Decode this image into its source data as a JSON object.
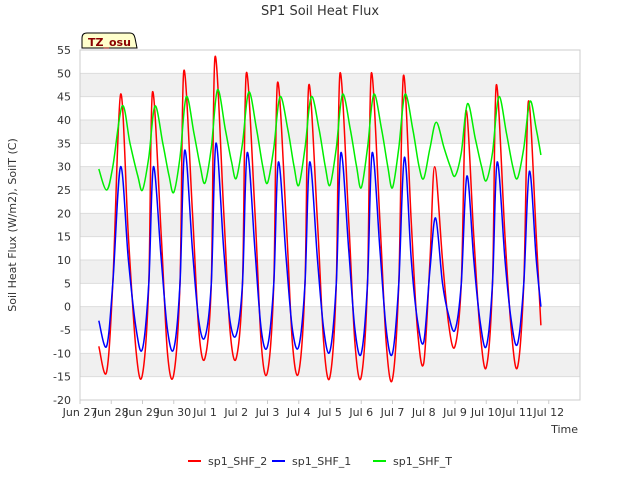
{
  "chart_data": {
    "type": "line",
    "title": "SP1 Soil Heat Flux",
    "xlabel": "Time",
    "ylabel": "Soil Heat Flux (W/m2), SoilT (C)",
    "badge": "TZ_osu",
    "ylim": [
      -20,
      55
    ],
    "yticks": [
      -20,
      -15,
      -10,
      -5,
      0,
      5,
      10,
      15,
      20,
      25,
      30,
      35,
      40,
      45,
      50,
      55
    ],
    "xlim": [
      0,
      16
    ],
    "xtick_labels": [
      "Jun 27",
      "Jun 28",
      "Jun 29",
      "Jun 30",
      "Jul 1",
      "Jul 2",
      "Jul 3",
      "Jul 4",
      "Jul 5",
      "Jul 6",
      "Jul 7",
      "Jul 8",
      "Jul 9",
      "Jul 10",
      "Jul 11",
      "Jul 12"
    ],
    "legend_position": "bottom",
    "series": [
      {
        "name": "sp1_SHF_2",
        "color": "#ff0000",
        "points": [
          [
            0.6,
            -8.5
          ],
          [
            0.85,
            -14
          ],
          [
            1.05,
            5
          ],
          [
            1.3,
            45.5
          ],
          [
            1.55,
            15
          ],
          [
            1.8,
            -10
          ],
          [
            2.0,
            -14.5
          ],
          [
            2.2,
            5
          ],
          [
            2.32,
            46
          ],
          [
            2.6,
            15
          ],
          [
            2.8,
            -10
          ],
          [
            3.0,
            -14.5
          ],
          [
            3.2,
            5
          ],
          [
            3.32,
            50.5
          ],
          [
            3.6,
            20
          ],
          [
            3.8,
            -5
          ],
          [
            4.0,
            -11
          ],
          [
            4.2,
            5
          ],
          [
            4.32,
            53.5
          ],
          [
            4.6,
            20
          ],
          [
            4.8,
            -5
          ],
          [
            5.0,
            -11
          ],
          [
            5.2,
            5
          ],
          [
            5.32,
            50
          ],
          [
            5.6,
            20
          ],
          [
            5.8,
            -8
          ],
          [
            6.0,
            -14
          ],
          [
            6.2,
            5
          ],
          [
            6.32,
            48
          ],
          [
            6.6,
            18
          ],
          [
            6.8,
            -8
          ],
          [
            7.0,
            -14
          ],
          [
            7.2,
            5
          ],
          [
            7.32,
            47.5
          ],
          [
            7.6,
            18
          ],
          [
            7.8,
            -8
          ],
          [
            8.0,
            -15
          ],
          [
            8.2,
            5
          ],
          [
            8.32,
            50
          ],
          [
            8.6,
            18
          ],
          [
            8.8,
            -8
          ],
          [
            9.0,
            -15
          ],
          [
            9.2,
            5
          ],
          [
            9.32,
            50
          ],
          [
            9.6,
            18
          ],
          [
            9.8,
            -8
          ],
          [
            10.0,
            -15.5
          ],
          [
            10.2,
            5
          ],
          [
            10.35,
            49.5
          ],
          [
            10.6,
            18
          ],
          [
            10.8,
            -5
          ],
          [
            11.0,
            -12
          ],
          [
            11.2,
            10
          ],
          [
            11.35,
            30
          ],
          [
            11.6,
            10
          ],
          [
            11.8,
            -4
          ],
          [
            12.0,
            -8.5
          ],
          [
            12.2,
            5
          ],
          [
            12.35,
            42
          ],
          [
            12.6,
            15
          ],
          [
            12.8,
            -5
          ],
          [
            13.0,
            -13
          ],
          [
            13.2,
            5
          ],
          [
            13.32,
            47.5
          ],
          [
            13.6,
            15
          ],
          [
            13.8,
            -5
          ],
          [
            14.0,
            -13
          ],
          [
            14.2,
            5
          ],
          [
            14.35,
            44
          ],
          [
            14.6,
            15
          ],
          [
            14.75,
            -4
          ]
        ]
      },
      {
        "name": "sp1_SHF_1",
        "color": "#0000ff",
        "points": [
          [
            0.6,
            -3
          ],
          [
            0.85,
            -8.5
          ],
          [
            1.05,
            5
          ],
          [
            1.3,
            30
          ],
          [
            1.55,
            10
          ],
          [
            1.8,
            -5
          ],
          [
            2.0,
            -9
          ],
          [
            2.2,
            5
          ],
          [
            2.35,
            30
          ],
          [
            2.6,
            10
          ],
          [
            2.8,
            -5
          ],
          [
            3.0,
            -9
          ],
          [
            3.2,
            5
          ],
          [
            3.35,
            33.5
          ],
          [
            3.6,
            12
          ],
          [
            3.8,
            -3
          ],
          [
            4.0,
            -6.5
          ],
          [
            4.2,
            5
          ],
          [
            4.35,
            35
          ],
          [
            4.6,
            12
          ],
          [
            4.8,
            -3
          ],
          [
            5.0,
            -6
          ],
          [
            5.2,
            5
          ],
          [
            5.35,
            33
          ],
          [
            5.6,
            12
          ],
          [
            5.8,
            -5
          ],
          [
            6.0,
            -8.5
          ],
          [
            6.2,
            5
          ],
          [
            6.35,
            31
          ],
          [
            6.6,
            10
          ],
          [
            6.8,
            -5
          ],
          [
            7.0,
            -8.5
          ],
          [
            7.2,
            5
          ],
          [
            7.35,
            31
          ],
          [
            7.6,
            10
          ],
          [
            7.8,
            -5
          ],
          [
            8.0,
            -9.5
          ],
          [
            8.2,
            5
          ],
          [
            8.35,
            33
          ],
          [
            8.6,
            12
          ],
          [
            8.8,
            -5
          ],
          [
            9.0,
            -10
          ],
          [
            9.2,
            5
          ],
          [
            9.35,
            33
          ],
          [
            9.6,
            12
          ],
          [
            9.8,
            -5
          ],
          [
            10.0,
            -10
          ],
          [
            10.2,
            5
          ],
          [
            10.38,
            32
          ],
          [
            10.6,
            10
          ],
          [
            10.8,
            -3
          ],
          [
            11.0,
            -7.5
          ],
          [
            11.2,
            8
          ],
          [
            11.38,
            19
          ],
          [
            11.6,
            5
          ],
          [
            11.8,
            -2
          ],
          [
            12.0,
            -5
          ],
          [
            12.2,
            5
          ],
          [
            12.38,
            28
          ],
          [
            12.6,
            10
          ],
          [
            12.8,
            -3
          ],
          [
            13.0,
            -8.5
          ],
          [
            13.2,
            5
          ],
          [
            13.35,
            31
          ],
          [
            13.6,
            10
          ],
          [
            13.8,
            -3
          ],
          [
            14.0,
            -8
          ],
          [
            14.2,
            5
          ],
          [
            14.38,
            29
          ],
          [
            14.6,
            10
          ],
          [
            14.75,
            0
          ]
        ]
      },
      {
        "name": "sp1_SHF_T",
        "color": "#00ee00",
        "points": [
          [
            0.6,
            29.5
          ],
          [
            0.85,
            25
          ],
          [
            1.05,
            30
          ],
          [
            1.35,
            43
          ],
          [
            1.6,
            35
          ],
          [
            1.85,
            28
          ],
          [
            2.0,
            25
          ],
          [
            2.2,
            32
          ],
          [
            2.4,
            43
          ],
          [
            2.65,
            35
          ],
          [
            2.85,
            28
          ],
          [
            3.0,
            24.5
          ],
          [
            3.2,
            32
          ],
          [
            3.4,
            45
          ],
          [
            3.65,
            37
          ],
          [
            3.85,
            30
          ],
          [
            4.0,
            26.5
          ],
          [
            4.2,
            34
          ],
          [
            4.4,
            46.5
          ],
          [
            4.65,
            38
          ],
          [
            4.85,
            31
          ],
          [
            5.0,
            27.5
          ],
          [
            5.2,
            35
          ],
          [
            5.4,
            46
          ],
          [
            5.65,
            38
          ],
          [
            5.85,
            30
          ],
          [
            6.0,
            26.5
          ],
          [
            6.2,
            34
          ],
          [
            6.4,
            45
          ],
          [
            6.65,
            38
          ],
          [
            6.85,
            30
          ],
          [
            7.0,
            26
          ],
          [
            7.2,
            34
          ],
          [
            7.4,
            45
          ],
          [
            7.65,
            38
          ],
          [
            7.85,
            30
          ],
          [
            8.0,
            26
          ],
          [
            8.2,
            34
          ],
          [
            8.4,
            45.5
          ],
          [
            8.65,
            38
          ],
          [
            8.85,
            30
          ],
          [
            9.0,
            25.5
          ],
          [
            9.2,
            34
          ],
          [
            9.4,
            45.5
          ],
          [
            9.65,
            38
          ],
          [
            9.85,
            30
          ],
          [
            10.0,
            25.5
          ],
          [
            10.2,
            34
          ],
          [
            10.4,
            45.5
          ],
          [
            10.65,
            38
          ],
          [
            10.85,
            30
          ],
          [
            11.0,
            27.5
          ],
          [
            11.2,
            34
          ],
          [
            11.4,
            39.5
          ],
          [
            11.65,
            34
          ],
          [
            11.85,
            30
          ],
          [
            12.0,
            28
          ],
          [
            12.2,
            33
          ],
          [
            12.4,
            43.5
          ],
          [
            12.65,
            36
          ],
          [
            12.85,
            30
          ],
          [
            13.0,
            27
          ],
          [
            13.2,
            33
          ],
          [
            13.4,
            45
          ],
          [
            13.65,
            37
          ],
          [
            13.85,
            30
          ],
          [
            14.0,
            27.5
          ],
          [
            14.2,
            34
          ],
          [
            14.4,
            44
          ],
          [
            14.6,
            38
          ],
          [
            14.75,
            32.5
          ]
        ]
      }
    ]
  }
}
